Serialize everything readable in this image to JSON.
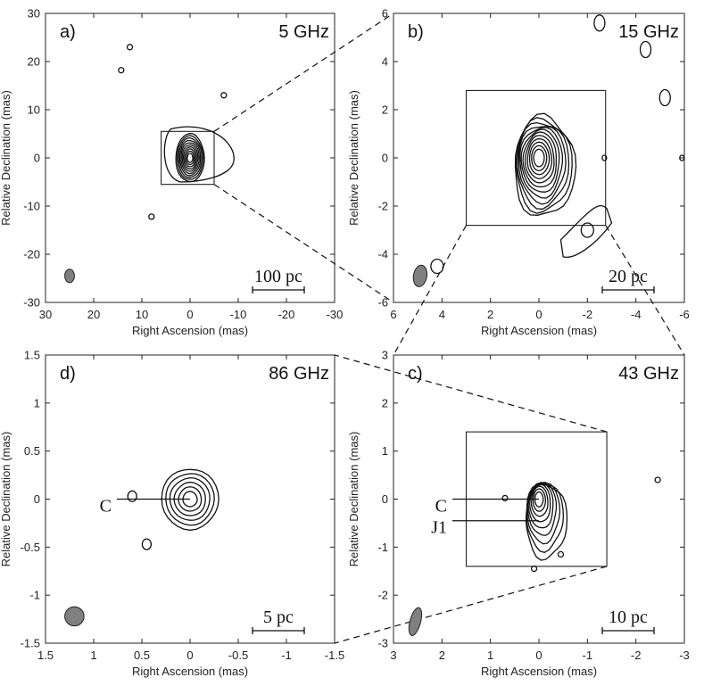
{
  "chart_data": [
    {
      "type": "contour",
      "panel_label": "a)",
      "frequency": "5 GHz",
      "xlabel": "Right Ascension (mas)",
      "ylabel": "Relative Declination (mas)",
      "xlim": [
        30,
        -30
      ],
      "ylim": [
        -30,
        30
      ],
      "xticks": [
        30,
        20,
        10,
        0,
        -10,
        -20,
        -30
      ],
      "yticks": [
        30,
        20,
        10,
        0,
        -10,
        -20,
        -30
      ],
      "scale_bar": "100 pc",
      "zoom_box_x": [
        6,
        -5
      ],
      "zoom_box_y": [
        -5.5,
        5.5
      ],
      "beam": {
        "x": 25,
        "y": -24.5,
        "major": 2.8,
        "minor": 2.0
      },
      "core": {
        "x": 0,
        "y": 0,
        "contour_levels": 10
      },
      "extended_emission_x_range": [
        5,
        -10
      ],
      "isolated_components": [
        {
          "x": 12.5,
          "y": 23
        },
        {
          "x": 14.3,
          "y": 18.2
        },
        {
          "x": -7,
          "y": 13
        },
        {
          "x": 8,
          "y": -12.2
        }
      ]
    },
    {
      "type": "contour",
      "panel_label": "b)",
      "frequency": "15 GHz",
      "xlabel": "Right Ascension (mas)",
      "ylabel": "Relative Declination (mas)",
      "xlim": [
        6,
        -6
      ],
      "ylim": [
        -6,
        6
      ],
      "xticks": [
        6,
        4,
        2,
        0,
        -2,
        -4,
        -6
      ],
      "yticks": [
        6,
        4,
        2,
        0,
        -2,
        -4,
        -6
      ],
      "scale_bar": "20 pc",
      "zoom_box_x": [
        3,
        -2.75
      ],
      "zoom_box_y": [
        -2.8,
        2.8
      ],
      "beam": {
        "x": 4.9,
        "y": -4.9,
        "major": 0.9,
        "minor": 0.55
      },
      "core": {
        "x": 0,
        "y": 0,
        "contour_levels": 12
      },
      "jet_component": {
        "x": -2,
        "y": -3
      },
      "isolated_components": [
        {
          "x": 4.2,
          "y": -4.5
        },
        {
          "x": -2.5,
          "y": 5.6
        },
        {
          "x": -4.4,
          "y": 4.5
        },
        {
          "x": -5.2,
          "y": 2.5
        },
        {
          "x": -5.9,
          "y": 0
        },
        {
          "x": -2.7,
          "y": 0
        }
      ]
    },
    {
      "type": "contour",
      "panel_label": "c)",
      "frequency": "43 GHz",
      "xlabel": "Right Ascension (mas)",
      "ylabel": "Relative Declination (mas)",
      "xlim": [
        3,
        -3
      ],
      "ylim": [
        -3,
        3
      ],
      "xticks": [
        3,
        2,
        1,
        0,
        -1,
        -2,
        -3
      ],
      "yticks": [
        3,
        2,
        1,
        0,
        -1,
        -2,
        -3
      ],
      "scale_bar": "10 pc",
      "zoom_box_x": [
        1.5,
        -1.4
      ],
      "zoom_box_y": [
        -1.4,
        1.4
      ],
      "beam": {
        "x": 2.55,
        "y": -2.55,
        "major": 0.6,
        "minor": 0.22
      },
      "core": {
        "x": 0,
        "y": 0,
        "contour_levels": 9
      },
      "components": [
        {
          "name": "C",
          "x": 0,
          "y": 0
        },
        {
          "name": "J1",
          "x": 0,
          "y": -0.45
        }
      ],
      "isolated_components": [
        {
          "x": 0.7,
          "y": 0.02
        },
        {
          "x": -0.45,
          "y": -1.15
        },
        {
          "x": -2.45,
          "y": 0.4
        },
        {
          "x": 0.1,
          "y": -1.45
        }
      ]
    },
    {
      "type": "contour",
      "panel_label": "d)",
      "frequency": "86 GHz",
      "xlabel": "Right Ascension (mas)",
      "ylabel": "Relative Declination (mas)",
      "xlim": [
        1.5,
        -1.5
      ],
      "ylim": [
        -1.5,
        1.5
      ],
      "xticks": [
        1.5,
        1,
        0.5,
        0,
        -0.5,
        -1,
        -1.5
      ],
      "yticks": [
        1.5,
        1,
        0.5,
        0,
        -0.5,
        -1,
        -1.5
      ],
      "scale_bar": "5 pc",
      "beam": {
        "x": 1.2,
        "y": -1.22,
        "major": 0.2,
        "minor": 0.2
      },
      "core": {
        "x": 0,
        "y": 0,
        "contour_levels": 6
      },
      "components": [
        {
          "name": "C",
          "x": 0,
          "y": 0
        }
      ],
      "isolated_components": [
        {
          "x": 0.6,
          "y": 0.03
        },
        {
          "x": 0.45,
          "y": -0.47
        }
      ]
    }
  ]
}
